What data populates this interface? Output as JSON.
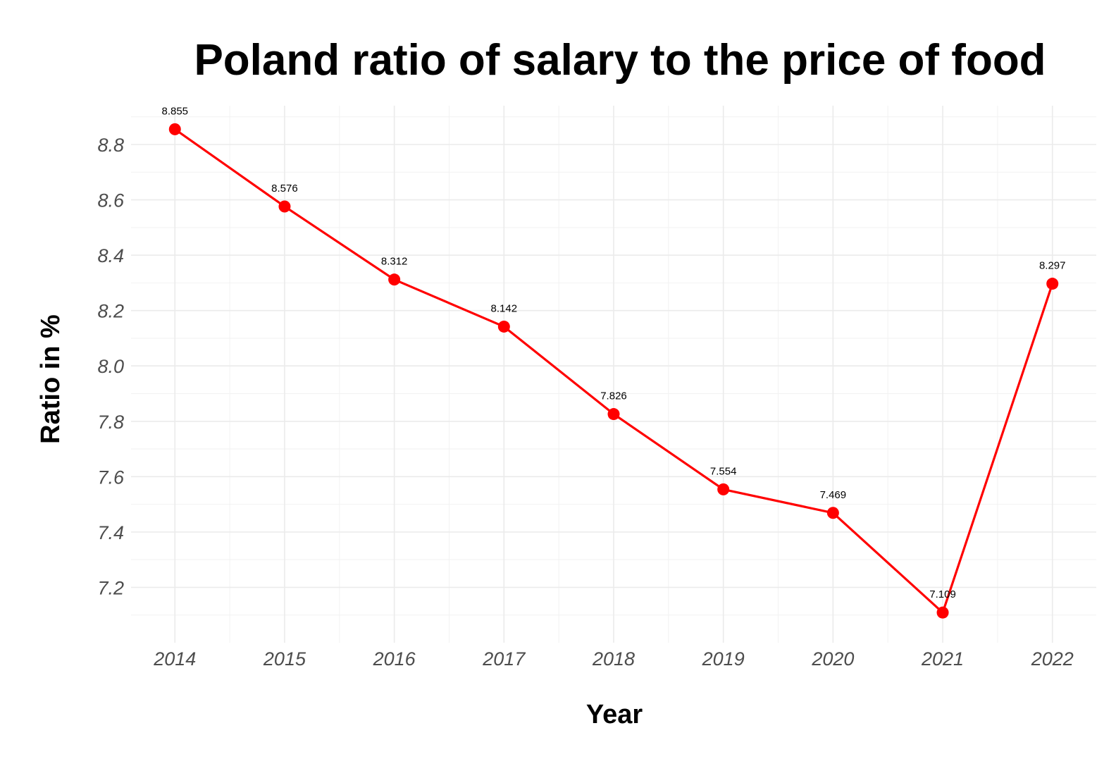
{
  "chart_data": {
    "type": "line",
    "title": "Poland ratio of salary to the price of food",
    "xlabel": "Year",
    "ylabel": "Ratio in %",
    "x": [
      2014,
      2015,
      2016,
      2017,
      2018,
      2019,
      2020,
      2021,
      2022
    ],
    "x_tick_labels": [
      "2014",
      "2015",
      "2016",
      "2017",
      "2018",
      "2019",
      "2020",
      "2021",
      "2022"
    ],
    "series": [
      {
        "values": [
          8.855,
          8.576,
          8.312,
          8.142,
          7.826,
          7.554,
          7.469,
          7.109,
          8.297
        ],
        "data_labels": [
          "8.855",
          "8.576",
          "8.312",
          "8.142",
          "7.826",
          "7.554",
          "7.469",
          "7.109",
          "8.297"
        ],
        "color": "#ff0000"
      }
    ],
    "y_ticks": [
      7.2,
      7.4,
      7.6,
      7.8,
      8.0,
      8.2,
      8.4,
      8.6,
      8.8
    ],
    "y_tick_labels": [
      "7.2",
      "7.4",
      "7.6",
      "7.8",
      "8.0",
      "8.2",
      "8.4",
      "8.6",
      "8.8"
    ],
    "xlim": [
      2013.6,
      2022.4
    ],
    "ylim": [
      7.0,
      8.94
    ],
    "grid": true,
    "legend": "none"
  }
}
